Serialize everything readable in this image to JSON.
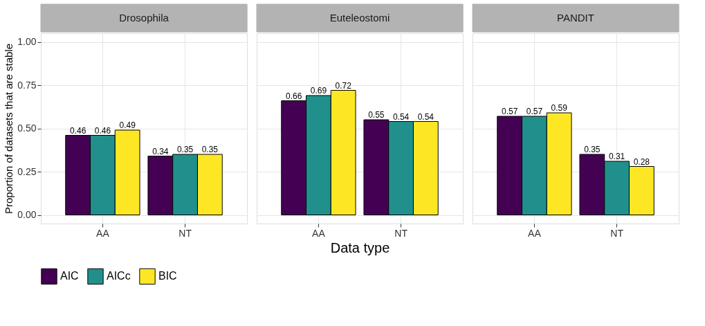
{
  "chart_data": [
    {
      "type": "bar",
      "title": "Drosophila",
      "ylabel": "Proportion of datasets that are stable",
      "categories": [
        "AA",
        "NT"
      ],
      "series": [
        {
          "name": "AIC",
          "color": "#440154",
          "values": [
            0.46,
            0.34
          ]
        },
        {
          "name": "AICc",
          "color": "#21908c",
          "values": [
            0.46,
            0.35
          ]
        },
        {
          "name": "BIC",
          "color": "#fde725",
          "values": [
            0.49,
            0.35
          ]
        }
      ],
      "ylim": [
        -0.05,
        1.05
      ],
      "yticks": [
        "0.00",
        "0.25",
        "0.50",
        "0.75",
        "1.00"
      ],
      "data_labels": true,
      "grid": true,
      "legend": "bottom"
    },
    {
      "type": "bar",
      "title": "Euteleostomi",
      "xlabel": "Data type",
      "categories": [
        "AA",
        "NT"
      ],
      "series": [
        {
          "name": "AIC",
          "color": "#440154",
          "values": [
            0.66,
            0.55
          ]
        },
        {
          "name": "AICc",
          "color": "#21908c",
          "values": [
            0.69,
            0.54
          ]
        },
        {
          "name": "BIC",
          "color": "#fde725",
          "values": [
            0.72,
            0.54
          ]
        }
      ],
      "ylim": [
        -0.05,
        1.05
      ],
      "yticks": [
        0,
        0.25,
        0.5,
        0.75,
        1
      ],
      "tick_labels": "x",
      "data_labels": true,
      "grid": true,
      "legend": "bottom"
    },
    {
      "type": "bar",
      "title": "PANDIT",
      "categories": [
        "AA",
        "NT"
      ],
      "series": [
        {
          "name": "AIC",
          "color": "#440154",
          "values": [
            0.57,
            0.35
          ]
        },
        {
          "name": "AICc",
          "color": "#21908c",
          "values": [
            0.57,
            0.31
          ]
        },
        {
          "name": "BIC",
          "color": "#fde725",
          "values": [
            0.59,
            0.28
          ]
        }
      ],
      "ylim": [
        -0.05,
        1.05
      ],
      "yticks": [
        0,
        0.25,
        0.5,
        0.75,
        1
      ],
      "tick_labels": "x",
      "data_labels": true,
      "grid": true,
      "legend": "bottom"
    }
  ]
}
